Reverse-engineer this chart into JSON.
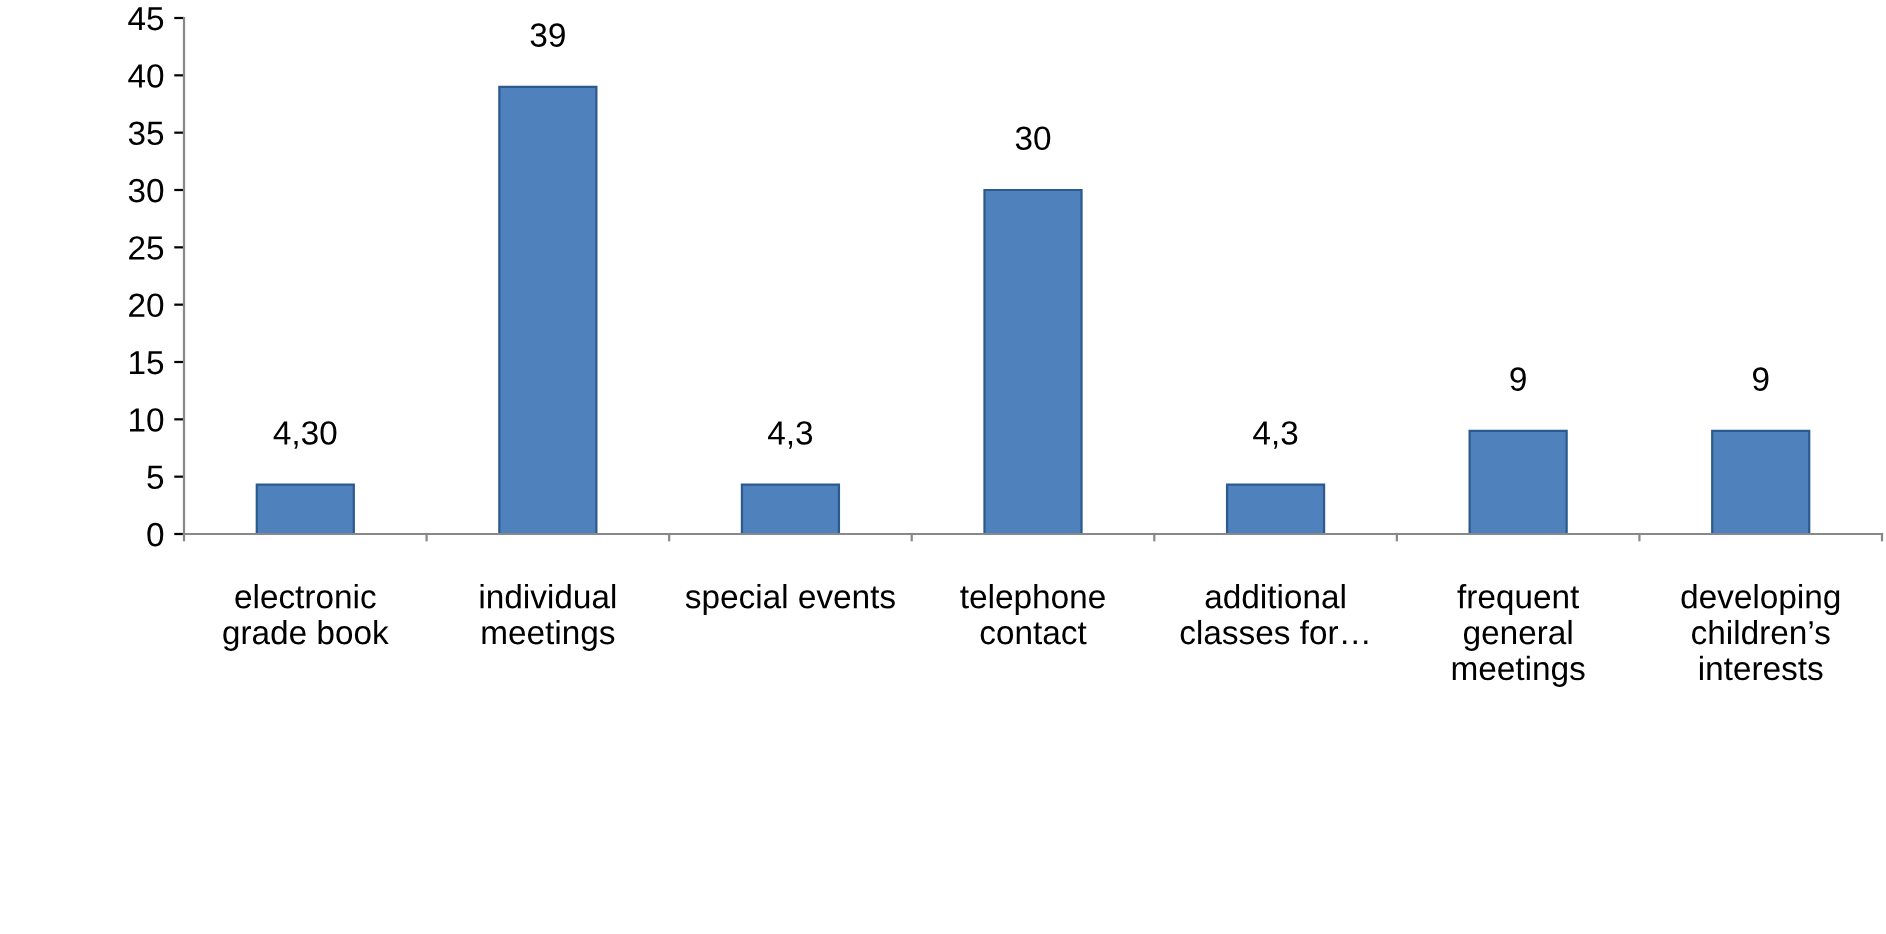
{
  "chart_data": {
    "type": "bar",
    "categories": [
      "electronic\ngrade book",
      "individual\nmeetings",
      "special events",
      "telephone\ncontact",
      "additional\nclasses for…",
      "frequent\ngeneral\nmeetings",
      "developing\nchildren’s\ninterests"
    ],
    "values": [
      4.3,
      39,
      4.3,
      30,
      4.3,
      9,
      9
    ],
    "value_labels": [
      "4,30",
      "39",
      "4,3",
      "30",
      "4,3",
      "9",
      "9"
    ],
    "color": "#4f81bd",
    "ylim": [
      0,
      45
    ],
    "yticks": [
      0,
      5,
      10,
      15,
      20,
      25,
      30,
      35,
      40,
      45
    ],
    "grid": false,
    "legend": false
  }
}
